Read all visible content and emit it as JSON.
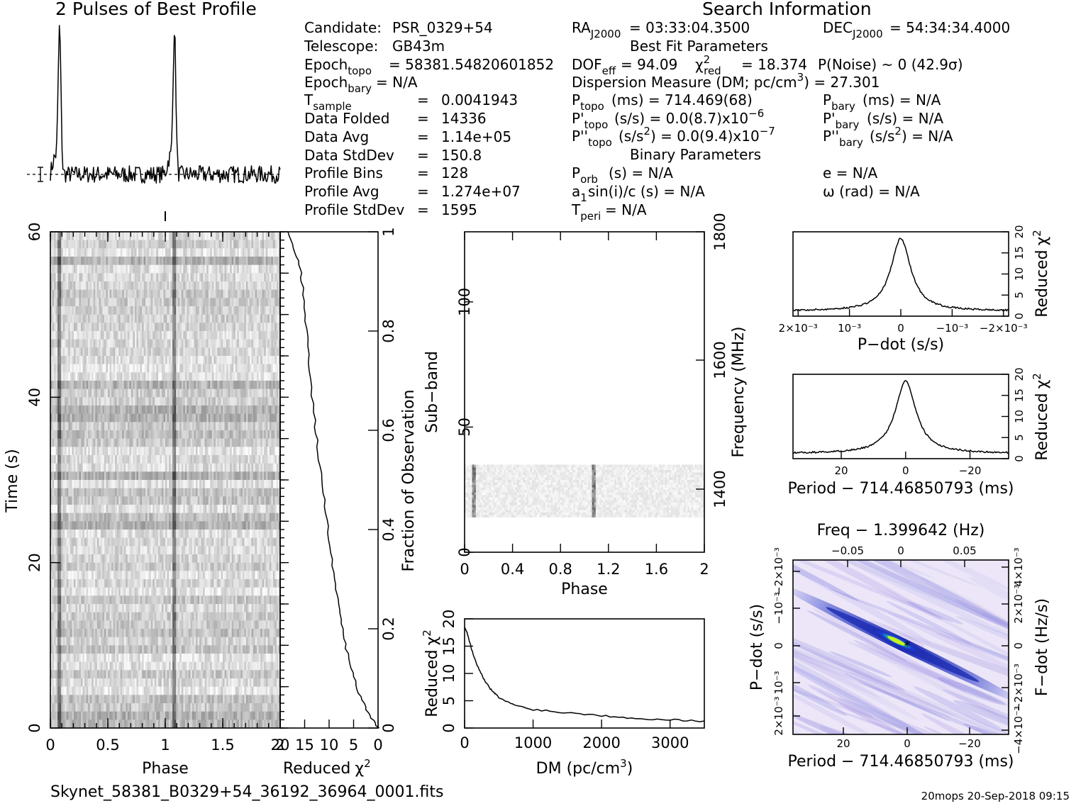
{
  "profile_title": "2 Pulses of Best Profile",
  "search_title": "Search Information",
  "best_fit_title": "Best Fit Parameters",
  "binary_title": "Binary Parameters",
  "info": {
    "candidate_label": "Candidate:",
    "candidate": "PSR_0329+54",
    "telescope_label": "Telescope:",
    "telescope": "GB43m",
    "epoch_topo_label": "Epoch",
    "epoch_topo_sub": "topo",
    "epoch_topo_val": "= 58381.54820601852",
    "epoch_bary_label": "Epoch",
    "epoch_bary_sub": "bary",
    "epoch_bary_val": "= N/A",
    "tsample_label": "T",
    "tsample_sub": "sample",
    "tsample_val": "0.0041943",
    "data_folded_label": "Data Folded",
    "data_folded_val": "14336",
    "data_avg_label": "Data Avg",
    "data_avg_val": "1.14e+05",
    "data_std_label": "Data StdDev",
    "data_std_val": "150.8",
    "profile_bins_label": "Profile Bins",
    "profile_bins_val": "128",
    "profile_avg_label": "Profile Avg",
    "profile_avg_val": "1.274e+07",
    "profile_std_label": "Profile StdDev",
    "profile_std_val": "1595",
    "eq": "=",
    "ra_label": "RA",
    "ra_sub": "J2000",
    "ra_val": "= 03:33:04.3500",
    "dec_label": "DEC",
    "dec_sub": "J2000",
    "dec_val": "= 54:34:34.4000",
    "dof_label": "DOF",
    "dof_sub": "eff",
    "dof_val": "= 94.09",
    "chi_label": "χ",
    "chi_sup": "2",
    "chi_sub": "red",
    "chi_val": "= 18.374",
    "pnoise": "P(Noise) ~ 0   (42.9σ)",
    "dm_text": "Dispersion Measure (DM; pc/cm",
    "dm_sup": "3",
    "dm_val": ") = 27.301",
    "ptopo_label": "P",
    "ptopo_sub": "topo",
    "ptopo_val": "(ms) =  714.469(68)",
    "pbary_label": "P",
    "pbary_sub": "bary",
    "pbary_val": "(ms) = N/A",
    "pdtopo_label": "P'",
    "pdtopo_sub": "topo",
    "pdtopo_val": "(s/s) = 0.0(8.7)x10",
    "pdtopo_exp": "−6",
    "pdbary_label": "P'",
    "pdbary_sub": "bary",
    "pdbary_val": "(s/s) = N/A",
    "pddtopo_label": "P''",
    "pddtopo_sub": "topo",
    "pddtopo_val": "(s/s",
    "pddtopo_sup": "2",
    "pddtopo_val2": ") = 0.0(9.4)x10",
    "pddtopo_exp": "−7",
    "pddbary_label": "P''",
    "pddbary_sub": "bary",
    "pddbary_val": "(s/s",
    "pddbary_sup": "2",
    "pddbary_val2": ") = N/A",
    "porb_label": "P",
    "porb_sub": "orb",
    "porb_val": "(s) = N/A",
    "e_val": "e = N/A",
    "a1_label": "a",
    "a1_sub": "1",
    "a1_val": "sin(i)/c (s) = N/A",
    "omega_val": "ω (rad) = N/A",
    "tperi_label": "T",
    "tperi_sub": "peri",
    "tperi_val": "= N/A"
  },
  "footer": {
    "filename": "Skynet_58381_B0329+54_36192_36964_0001.fits",
    "stamp": "20mops 20-Sep-2018 09:15"
  },
  "labels": {
    "time_axis": "Time (s)",
    "phase": "Phase",
    "reduced": "Reduced",
    "chi": "χ",
    "two": "2",
    "fraction": "Fraction of Observation",
    "subband": "Sub−band",
    "frequency": "Frequency (MHz)",
    "dm_axis": "DM (pc/cm",
    "dm_axis_sup": "3",
    "dm_axis_end": ")",
    "pdot_axis": "P−dot (s/s)",
    "period_axis": "Period − 714.46850793 (ms)",
    "freq_axis": "Freq − 1.399642 (Hz)",
    "fdot_axis": "F−dot (Hz/s)"
  },
  "colors": {
    "map_bg": "#ece6f8",
    "map_dark": "#1a2ab0",
    "map_mid": "#3f5fe0",
    "map_peak": "#1ec8a0",
    "map_hot": "#c8f020"
  },
  "chart_data": [
    {
      "id": "profile",
      "type": "line",
      "title": "2 Pulses of Best Profile",
      "x": "phase 0-2 (two pulses)",
      "peaks_phase": [
        0.08,
        1.08
      ],
      "note_values": "peak height ~ 1.0 (relative), baseline ~ 0"
    },
    {
      "id": "time_phase",
      "type": "heatmap",
      "xlabel": "Phase",
      "ylabel": "Time (s)",
      "xlim": [
        0,
        2
      ],
      "ylim": [
        0,
        60
      ],
      "xticks": [
        "0",
        "0.5",
        "1",
        "1.5",
        "2"
      ],
      "yticks": [
        "0",
        "20",
        "40",
        "60"
      ],
      "pulse_phase": [
        0.08,
        1.08
      ]
    },
    {
      "id": "reduced_chi2_time",
      "type": "line",
      "xlabel": "Reduced χ²",
      "ylabel": "Fraction of Observation",
      "xlim": [
        20,
        0
      ],
      "ylim": [
        0,
        1
      ],
      "xticks": [
        "20",
        "15",
        "10",
        "5",
        "0"
      ],
      "yticks": [
        "0",
        "0.2",
        "0.4",
        "0.6",
        "0.8",
        "1"
      ],
      "points": [
        [
          0.0,
          0.0
        ],
        [
          2,
          0.03
        ],
        [
          4,
          0.07
        ],
        [
          5.5,
          0.12
        ],
        [
          7,
          0.18
        ],
        [
          8,
          0.24
        ],
        [
          9,
          0.3
        ],
        [
          10,
          0.38
        ],
        [
          11,
          0.46
        ],
        [
          12,
          0.54
        ],
        [
          13,
          0.62
        ],
        [
          14,
          0.72
        ],
        [
          14.8,
          0.82
        ],
        [
          15.5,
          0.9
        ],
        [
          16.5,
          0.95
        ],
        [
          18.4,
          1.0
        ]
      ]
    },
    {
      "id": "subband_phase",
      "type": "heatmap",
      "xlabel": "Phase",
      "ylabel": "Sub−band",
      "y2label": "Frequency (MHz)",
      "xlim": [
        0,
        2
      ],
      "ylim": [
        0,
        128
      ],
      "xticks": [
        "0",
        "0.4",
        "0.8",
        "1.2",
        "1.6",
        "2"
      ],
      "yticks": [
        "0",
        "50",
        "100"
      ],
      "y2ticks": [
        "1400",
        "1600",
        "1800"
      ],
      "filled_subbands": [
        14,
        35
      ]
    },
    {
      "id": "dm_chi2",
      "type": "line",
      "xlabel": "DM (pc/cm³)",
      "ylabel": "Reduced χ²",
      "xlim": [
        0,
        3500
      ],
      "ylim": [
        0,
        20
      ],
      "xticks": [
        "0",
        "1000",
        "2000",
        "3000"
      ],
      "yticks": [
        "0",
        "5",
        "10",
        "15",
        "20"
      ],
      "points": [
        [
          0,
          18.5
        ],
        [
          50,
          17
        ],
        [
          100,
          14.5
        ],
        [
          200,
          11
        ],
        [
          300,
          8.5
        ],
        [
          400,
          6.8
        ],
        [
          500,
          5.6
        ],
        [
          700,
          4.3
        ],
        [
          1000,
          3.4
        ],
        [
          1500,
          2.8
        ],
        [
          2000,
          2.3
        ],
        [
          2500,
          1.8
        ],
        [
          3000,
          1.5
        ],
        [
          3500,
          1.3
        ]
      ]
    },
    {
      "id": "pdot_chi2",
      "type": "line",
      "xlabel": "P−dot (s/s)",
      "ylabel": "Reduced χ²",
      "xlim": [
        0.0021,
        -0.0021
      ],
      "ylim": [
        0,
        20
      ],
      "xticks": [
        "2×10⁻³",
        "10⁻³",
        "0",
        "−10⁻³",
        "−2×10⁻³"
      ],
      "yticks": [
        "0",
        "5",
        "10",
        "15",
        "20"
      ],
      "peak": [
        0,
        18.4
      ],
      "baseline": 1.2
    },
    {
      "id": "period_chi2",
      "type": "line",
      "xlabel": "Period − 714.46850793 (ms)",
      "ylabel": "Reduced χ²",
      "xlim": [
        35,
        -32
      ],
      "ylim": [
        0,
        20
      ],
      "xticks": [
        "20",
        "0",
        "−20"
      ],
      "yticks": [
        "0",
        "5",
        "10",
        "15",
        "20"
      ],
      "peak": [
        0,
        18.4
      ],
      "baseline": 1.2
    },
    {
      "id": "period_pdot_map",
      "type": "heatmap",
      "xlabel": "Period − 714.46850793 (ms)",
      "ylabel": "P−dot (s/s)",
      "x2label": "Freq − 1.399642 (Hz)",
      "y2label": "F−dot (Hz/s)",
      "xticks": [
        "20",
        "0",
        "−20"
      ],
      "x2ticks": [
        "−0.05",
        "0",
        "0.05"
      ],
      "yticks": [
        "2×10⁻³",
        "10⁻³",
        "0",
        "−10⁻³",
        "−2×10⁻³"
      ],
      "y2ticks": [
        "−4×10⁻³",
        "−2×10⁻³",
        "0",
        "2×10⁻³",
        "4×10⁻³"
      ],
      "best": [
        0,
        0
      ]
    }
  ]
}
